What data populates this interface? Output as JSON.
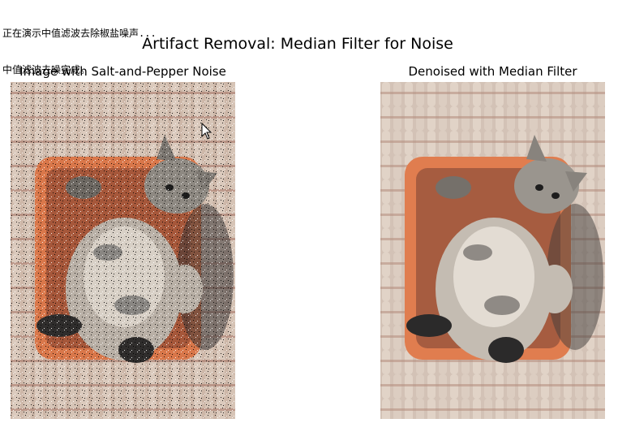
{
  "console": {
    "line1": "正在演示中值滤波去除椒盐噪声...",
    "line2": "中值滤波去噪完成。"
  },
  "figure": {
    "title": "Artifact Removal: Median Filter for Noise"
  },
  "panels": [
    {
      "title": "Image with Salt-and-Pepper Noise",
      "image": "kitten in orange basket on knit blanket (noisy)"
    },
    {
      "title": "Denoised with Median Filter",
      "image": "kitten in orange basket on knit blanket (filtered)"
    }
  ],
  "colors": {
    "blanket": "#d8c9bd",
    "basket": "#d9774a",
    "fur": "#8a8580",
    "dark": "#2b2a2a"
  },
  "icons": {
    "cursor": "mouse-pointer-icon"
  }
}
